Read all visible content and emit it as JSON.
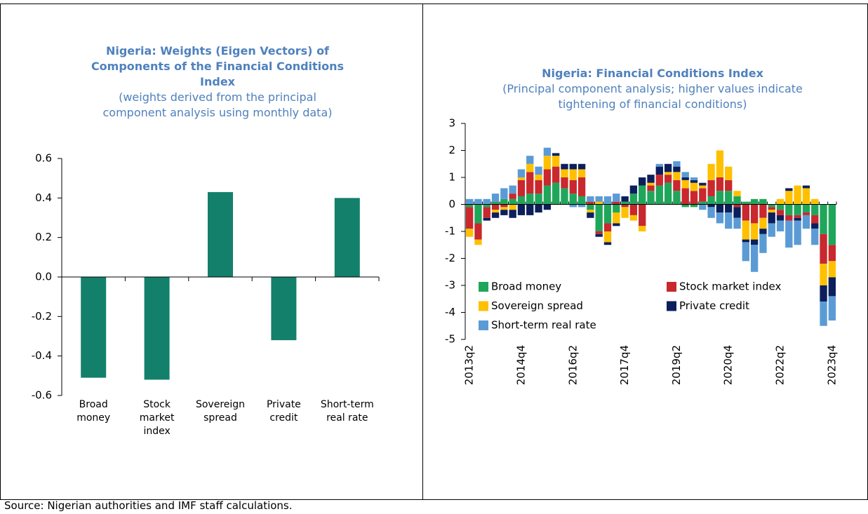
{
  "chart_data": [
    {
      "type": "bar",
      "title": "Nigeria: Weights (Eigen Vectors) of Components of the Financial Conditions Index",
      "subtitle": "(weights derived from the principal component analysis using monthly data)",
      "categories": [
        "Broad money",
        "Stock market index",
        "Sovereign spread",
        "Private credit",
        "Short-term real rate"
      ],
      "values": [
        -0.51,
        -0.52,
        0.43,
        -0.32,
        0.4
      ],
      "color": "#13806b",
      "ylim": [
        -0.6,
        0.6
      ],
      "yticks": [
        -0.6,
        -0.4,
        -0.2,
        {
          "value": 0,
          "label": "0.0"
        },
        0.2,
        0.4,
        0.6
      ]
    },
    {
      "type": "stacked_bar",
      "title": "Nigeria: Financial Conditions Index",
      "subtitle": "(Principal component analysis; higher values indicate tightening of financial conditions)",
      "categories": [
        "2013q2",
        null,
        null,
        null,
        null,
        null,
        "2014q4",
        null,
        null,
        null,
        null,
        null,
        "2016q2",
        null,
        null,
        null,
        null,
        null,
        "2017q4",
        null,
        null,
        null,
        null,
        null,
        "2019q2",
        null,
        null,
        null,
        null,
        null,
        "2020q4",
        null,
        null,
        null,
        null,
        null,
        "2022q2",
        null,
        null,
        null,
        null,
        null,
        "2023q4"
      ],
      "series": [
        {
          "name": "Broad money",
          "color": "#1fa65a",
          "values": [
            -0.1,
            -0.7,
            -0.1,
            0.1,
            0.2,
            0.2,
            0.3,
            0.4,
            0.4,
            0.7,
            0.8,
            0.6,
            0.4,
            0.3,
            -0.2,
            -1.0,
            -0.7,
            -0.3,
            0.1,
            0.4,
            0.7,
            0.5,
            0.7,
            0.8,
            0.5,
            -0.1,
            -0.1,
            0.1,
            0.3,
            0.5,
            0.5,
            0.3,
            0.1,
            0.2,
            0.2,
            -0.1,
            -0.2,
            -0.4,
            -0.4,
            -0.3,
            -0.4,
            -1.1,
            -1.5
          ]
        },
        {
          "name": "Stock market index",
          "color": "#c8282e",
          "values": [
            -0.8,
            -0.6,
            -0.4,
            -0.2,
            -0.1,
            0.2,
            0.6,
            0.8,
            0.5,
            0.6,
            0.6,
            0.4,
            0.5,
            0.7,
            0.1,
            -0.1,
            -0.3,
            0.1,
            -0.1,
            -0.4,
            -0.8,
            0.2,
            0.4,
            0.3,
            0.4,
            0.6,
            0.5,
            0.5,
            0.6,
            0.5,
            0.4,
            -0.1,
            -0.6,
            -0.7,
            -0.5,
            -0.1,
            -0.2,
            -0.2,
            -0.1,
            -0.1,
            -0.3,
            -1.1,
            -0.6
          ]
        },
        {
          "name": "Sovereign spread",
          "color": "#ffc000",
          "values": [
            -0.3,
            -0.2,
            0,
            -0.1,
            -0.1,
            -0.2,
            0.1,
            0.3,
            0.2,
            0.5,
            0.4,
            0.3,
            0.4,
            0.3,
            -0.1,
            0.1,
            -0.4,
            -0.4,
            -0.4,
            -0.2,
            -0.2,
            0.1,
            0,
            0.1,
            0.3,
            0.3,
            0.3,
            0.1,
            0.6,
            1.0,
            0.5,
            0.2,
            -0.7,
            -0.6,
            -0.4,
            -0.1,
            0.2,
            0.5,
            0.7,
            0.6,
            0.2,
            -0.8,
            -0.6
          ]
        },
        {
          "name": "Private credit",
          "color": "#0c1f5c",
          "values": [
            0,
            0,
            -0.1,
            -0.2,
            -0.2,
            -0.3,
            -0.4,
            -0.4,
            -0.3,
            -0.2,
            0.1,
            0.2,
            0.2,
            0.2,
            -0.2,
            -0.1,
            -0.1,
            -0.1,
            0.2,
            0.3,
            0.3,
            0.3,
            0.3,
            0.3,
            0.2,
            0.1,
            0.1,
            0.1,
            -0.1,
            -0.3,
            -0.3,
            -0.4,
            -0.1,
            -0.2,
            -0.2,
            -0.4,
            -0.2,
            0.1,
            -0.1,
            0.1,
            -0.2,
            -0.6,
            -0.7
          ]
        },
        {
          "name": "Short-term real rate",
          "color": "#5b9bd5",
          "values": [
            0.2,
            0.2,
            0.2,
            0.3,
            0.4,
            0.3,
            0.3,
            0.3,
            0.3,
            0.3,
            0,
            0,
            -0.1,
            -0.1,
            0.2,
            0.2,
            0.3,
            0.3,
            0,
            0,
            0,
            0,
            0.1,
            0,
            0.2,
            0.2,
            0.1,
            -0.2,
            -0.4,
            -0.4,
            -0.6,
            -0.4,
            -0.7,
            -1.0,
            -0.7,
            -0.5,
            -0.4,
            -1.0,
            -0.9,
            -0.5,
            -0.6,
            -0.9,
            -0.9
          ]
        }
      ],
      "legend": "lower left",
      "ylim": [
        -5,
        3
      ],
      "yticks": [
        -5,
        -4,
        -3,
        -2,
        -1,
        0,
        1,
        2,
        3
      ]
    }
  ],
  "source": "Source: Nigerian authorities and  IMF staff calculations."
}
